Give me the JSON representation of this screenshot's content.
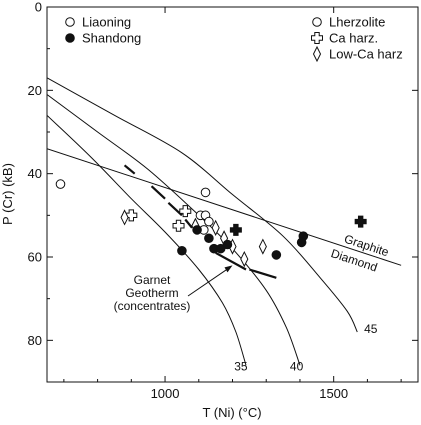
{
  "chart_data": {
    "type": "scatter",
    "xlabel": "T (Ni) (°C)",
    "ylabel": "P (Cr) (kB)",
    "xlim": [
      650,
      1750
    ],
    "ylim": [
      0,
      90
    ],
    "y_reversed": true,
    "x_ticks": [
      1000,
      1500
    ],
    "y_ticks": [
      0,
      20,
      40,
      60,
      80
    ],
    "grid": false,
    "legend_locality": {
      "placement": "top-left",
      "entries": [
        {
          "label": "Liaoning",
          "marker": "open-circle"
        },
        {
          "label": "Shandong",
          "marker": "filled-circle"
        }
      ]
    },
    "legend_lithology": {
      "placement": "top-right",
      "entries": [
        {
          "label": "Lherzolite",
          "marker": "circle"
        },
        {
          "label": "Ca harz.",
          "marker": "cross"
        },
        {
          "label": "Low-Ca harz",
          "marker": "diamond"
        }
      ]
    },
    "geotherms": [
      {
        "label": "35",
        "points": [
          [
            650,
            26
          ],
          [
            780,
            36
          ],
          [
            900,
            46
          ],
          [
            1000,
            54
          ],
          [
            1100,
            63
          ],
          [
            1170,
            71
          ],
          [
            1210,
            78
          ],
          [
            1240,
            86
          ]
        ],
        "label_at": [
          1225,
          86
        ]
      },
      {
        "label": "40",
        "points": [
          [
            650,
            21
          ],
          [
            800,
            30
          ],
          [
            950,
            39
          ],
          [
            1100,
            50
          ],
          [
            1200,
            58
          ],
          [
            1300,
            68
          ],
          [
            1360,
            77
          ],
          [
            1400,
            86
          ]
        ],
        "label_at": [
          1390,
          86
        ]
      },
      {
        "label": "45",
        "points": [
          [
            650,
            17
          ],
          [
            850,
            26
          ],
          [
            1050,
            35
          ],
          [
            1200,
            45
          ],
          [
            1350,
            55
          ],
          [
            1460,
            65
          ],
          [
            1540,
            73
          ],
          [
            1570,
            78
          ]
        ],
        "label_at": [
          1610,
          77
        ]
      }
    ],
    "graphite_diamond_line": {
      "points": [
        [
          650,
          34
        ],
        [
          1700,
          62
        ]
      ],
      "label_above": "Graphite",
      "label_below": "Diamond"
    },
    "garnet_geotherm_segments": [
      [
        [
          880,
          38
        ],
        [
          910,
          40
        ]
      ],
      [
        [
          960,
          43
        ],
        [
          1000,
          46
        ]
      ],
      [
        [
          1010,
          47
        ],
        [
          1050,
          50
        ]
      ],
      [
        [
          1060,
          51
        ],
        [
          1080,
          53
        ]
      ],
      [
        [
          1150,
          59
        ],
        [
          1240,
          63
        ]
      ],
      [
        [
          1250,
          63
        ],
        [
          1330,
          65
        ]
      ]
    ],
    "garnet_geotherm_label": {
      "lines": [
        "Garnet",
        "Geotherm",
        "(concentrates)"
      ],
      "arrow_to": [
        1200,
        62
      ]
    },
    "points": [
      {
        "x": 690,
        "y": 42.5,
        "locality": "Liaoning",
        "lithology": "Lherzolite"
      },
      {
        "x": 1120,
        "y": 44.5,
        "locality": "Liaoning",
        "lithology": "Lherzolite"
      },
      {
        "x": 1105,
        "y": 50,
        "locality": "Liaoning",
        "lithology": "Lherzolite"
      },
      {
        "x": 1120,
        "y": 50,
        "locality": "Liaoning",
        "lithology": "Lherzolite"
      },
      {
        "x": 1130,
        "y": 51.5,
        "locality": "Liaoning",
        "lithology": "Lherzolite"
      },
      {
        "x": 1115,
        "y": 53.5,
        "locality": "Liaoning",
        "lithology": "Lherzolite"
      },
      {
        "x": 900,
        "y": 50,
        "locality": "Liaoning",
        "lithology": "Ca harz."
      },
      {
        "x": 1060,
        "y": 49,
        "locality": "Liaoning",
        "lithology": "Ca harz."
      },
      {
        "x": 1040,
        "y": 52.5,
        "locality": "Liaoning",
        "lithology": "Ca harz."
      },
      {
        "x": 1210,
        "y": 53.5,
        "locality": "Shandong",
        "lithology": "Ca harz."
      },
      {
        "x": 1580,
        "y": 51.5,
        "locality": "Shandong",
        "lithology": "Ca harz."
      },
      {
        "x": 880,
        "y": 50.5,
        "locality": "Liaoning",
        "lithology": "Low-Ca harz"
      },
      {
        "x": 1090,
        "y": 52.5,
        "locality": "Liaoning",
        "lithology": "Low-Ca harz"
      },
      {
        "x": 1150,
        "y": 53,
        "locality": "Liaoning",
        "lithology": "Low-Ca harz"
      },
      {
        "x": 1175,
        "y": 55.5,
        "locality": "Liaoning",
        "lithology": "Low-Ca harz"
      },
      {
        "x": 1200,
        "y": 57.5,
        "locality": "Liaoning",
        "lithology": "Low-Ca harz"
      },
      {
        "x": 1235,
        "y": 60.5,
        "locality": "Liaoning",
        "lithology": "Low-Ca harz"
      },
      {
        "x": 1290,
        "y": 57.5,
        "locality": "Liaoning",
        "lithology": "Low-Ca harz"
      },
      {
        "x": 1050,
        "y": 58.5,
        "locality": "Shandong",
        "lithology": "Lherzolite"
      },
      {
        "x": 1095,
        "y": 53.5,
        "locality": "Shandong",
        "lithology": "Lherzolite"
      },
      {
        "x": 1130,
        "y": 55.5,
        "locality": "Shandong",
        "lithology": "Lherzolite"
      },
      {
        "x": 1145,
        "y": 58,
        "locality": "Shandong",
        "lithology": "Lherzolite"
      },
      {
        "x": 1165,
        "y": 58,
        "locality": "Shandong",
        "lithology": "Lherzolite"
      },
      {
        "x": 1185,
        "y": 57,
        "locality": "Shandong",
        "lithology": "Lherzolite"
      },
      {
        "x": 1410,
        "y": 55,
        "locality": "Shandong",
        "lithology": "Lherzolite"
      },
      {
        "x": 1405,
        "y": 56.5,
        "locality": "Shandong",
        "lithology": "Lherzolite"
      },
      {
        "x": 1330,
        "y": 59.5,
        "locality": "Shandong",
        "lithology": "Lherzolite"
      }
    ]
  }
}
